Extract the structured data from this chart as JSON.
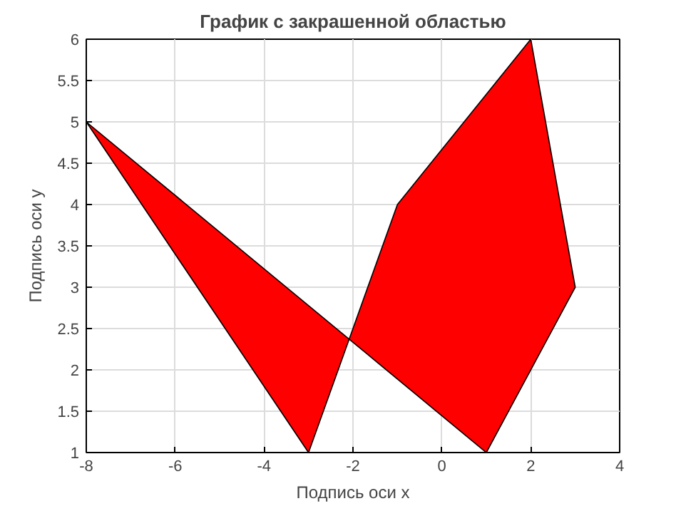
{
  "chart_data": {
    "type": "area",
    "title": "График с закрашенной областью",
    "xlabel": "Подпись оси x",
    "ylabel": "Подпись оси y",
    "series": [
      {
        "color": "#ff0000",
        "x": [
          -8,
          1,
          3,
          2,
          -1,
          -3
        ],
        "values": [
          5,
          1,
          3,
          6,
          4,
          1
        ]
      }
    ],
    "xlim": [
      -8,
      4
    ],
    "ylim": [
      1,
      6
    ],
    "xticks": [
      -8,
      -6,
      -4,
      -2,
      0,
      2,
      4
    ],
    "yticks": [
      1,
      1.5,
      2,
      2.5,
      3,
      3.5,
      4,
      4.5,
      5,
      5.5,
      6
    ],
    "grid": true
  }
}
